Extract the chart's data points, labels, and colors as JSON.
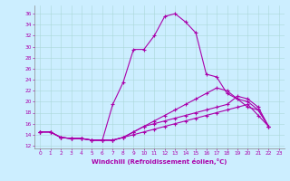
{
  "xlabel": "Windchill (Refroidissement éolien,°C)",
  "bg_color": "#cceeff",
  "line_color": "#aa00aa",
  "xlim": [
    -0.5,
    23.5
  ],
  "ylim": [
    11.5,
    37.5
  ],
  "yticks": [
    12,
    14,
    16,
    18,
    20,
    22,
    24,
    26,
    28,
    30,
    32,
    34,
    36
  ],
  "xticks": [
    0,
    1,
    2,
    3,
    4,
    5,
    6,
    7,
    8,
    9,
    10,
    11,
    12,
    13,
    14,
    15,
    16,
    17,
    18,
    19,
    20,
    21,
    22,
    23
  ],
  "series": [
    [
      14.5,
      14.5,
      13.5,
      13.3,
      13.3,
      13.0,
      13.0,
      19.5,
      23.5,
      29.5,
      29.5,
      32.0,
      35.5,
      36.0,
      34.5,
      32.5,
      25.0,
      24.5,
      21.5,
      20.5,
      19.0,
      18.5,
      15.5
    ],
    [
      14.5,
      14.5,
      13.5,
      13.3,
      13.3,
      13.0,
      13.0,
      13.0,
      13.5,
      14.5,
      15.5,
      16.5,
      17.5,
      18.5,
      19.5,
      20.5,
      21.5,
      22.5,
      22.0,
      20.5,
      20.0,
      18.5,
      15.5
    ],
    [
      14.5,
      14.5,
      13.5,
      13.3,
      13.3,
      13.0,
      13.0,
      13.0,
      13.5,
      14.5,
      15.5,
      16.0,
      16.5,
      17.0,
      17.5,
      18.0,
      18.5,
      19.0,
      19.5,
      21.0,
      20.5,
      19.0,
      15.5
    ],
    [
      14.5,
      14.5,
      13.5,
      13.3,
      13.3,
      13.0,
      13.0,
      13.0,
      13.5,
      14.0,
      14.5,
      15.0,
      15.5,
      16.0,
      16.5,
      17.0,
      17.5,
      18.0,
      18.5,
      19.0,
      19.5,
      17.5,
      15.5
    ]
  ]
}
